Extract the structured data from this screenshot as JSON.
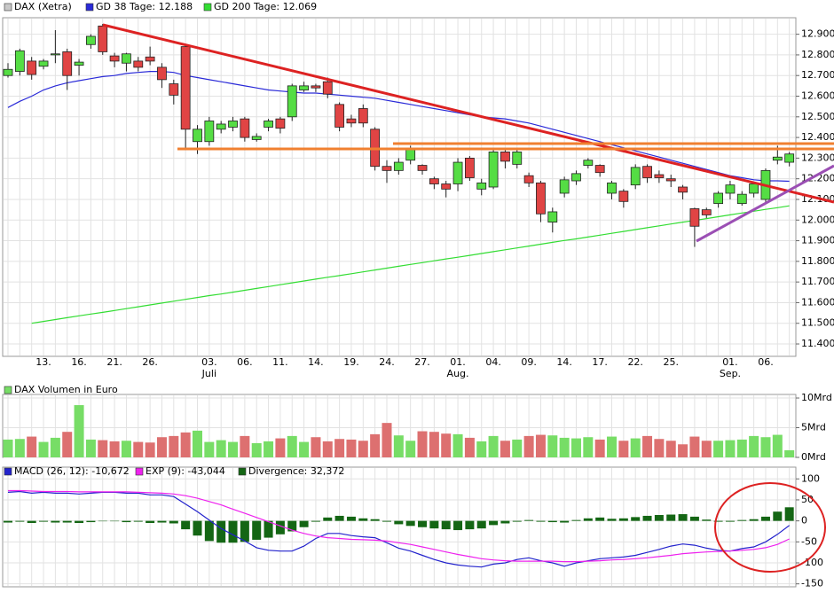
{
  "chart_data": [
    {
      "type": "candlestick",
      "name": "DAX (Xetra)",
      "legend_color": "#c8c8c8",
      "up_color": "#55dd44",
      "down_color": "#e04444",
      "categories": [
        null,
        null,
        null,
        "13.",
        null,
        null,
        "16.",
        null,
        null,
        "21.",
        null,
        null,
        "26.",
        null,
        null,
        null,
        null,
        "03.",
        null,
        null,
        "06.",
        null,
        null,
        "11.",
        null,
        null,
        "14.",
        null,
        null,
        "19.",
        null,
        null,
        "24.",
        null,
        null,
        "27.",
        null,
        null,
        "01.",
        null,
        null,
        "04.",
        null,
        null,
        "09.",
        null,
        null,
        "14.",
        null,
        null,
        "17.",
        null,
        null,
        "22.",
        null,
        null,
        "25.",
        null,
        null,
        null,
        null,
        "01.",
        null,
        null,
        "06.",
        null,
        null
      ],
      "month_labels": [
        null,
        null,
        null,
        null,
        null,
        null,
        null,
        null,
        null,
        null,
        null,
        null,
        null,
        null,
        null,
        null,
        null,
        "Juli",
        null,
        null,
        null,
        null,
        null,
        null,
        null,
        null,
        null,
        null,
        null,
        null,
        null,
        null,
        null,
        null,
        null,
        null,
        null,
        null,
        "Aug.",
        null,
        null,
        null,
        null,
        null,
        null,
        null,
        null,
        null,
        null,
        null,
        null,
        null,
        null,
        null,
        null,
        null,
        null,
        null,
        null,
        null,
        null,
        "Sep.",
        null,
        null,
        null,
        null,
        null
      ],
      "open": [
        12700,
        12720,
        12770,
        12745,
        12800,
        12815,
        12750,
        12850,
        12940,
        12795,
        12760,
        12770,
        12790,
        12740,
        12660,
        12840,
        12380,
        12380,
        12440,
        12450,
        12490,
        12390,
        12450,
        12490,
        12500,
        12630,
        12650,
        12670,
        12560,
        12490,
        12540,
        12440,
        12260,
        12240,
        12290,
        12265,
        12200,
        12175,
        12175,
        12300,
        12150,
        12160,
        12330,
        12270,
        12215,
        12180,
        11990,
        12130,
        12190,
        12265,
        12265,
        12130,
        12140,
        12170,
        12260,
        12220,
        12200,
        12160,
        12055,
        12050,
        12080,
        12130,
        12080,
        12130,
        12100,
        12290,
        12280
      ],
      "high": [
        12760,
        12830,
        12790,
        12780,
        12920,
        12830,
        12780,
        12900,
        12950,
        12810,
        12810,
        12790,
        12840,
        12760,
        12680,
        12850,
        12460,
        12500,
        12480,
        12500,
        12500,
        12420,
        12490,
        12500,
        12660,
        12670,
        12660,
        12690,
        12570,
        12510,
        12560,
        12450,
        12290,
        12300,
        12360,
        12270,
        12210,
        12190,
        12300,
        12310,
        12200,
        12340,
        12340,
        12350,
        12230,
        12190,
        12060,
        12210,
        12240,
        12300,
        12270,
        12190,
        12150,
        12270,
        12270,
        12240,
        12220,
        12170,
        12060,
        12060,
        12140,
        12190,
        12140,
        12180,
        12250,
        12360,
        12330
      ],
      "low": [
        12690,
        12700,
        12680,
        12730,
        12760,
        12630,
        12700,
        12830,
        12800,
        12740,
        12720,
        12720,
        12750,
        12640,
        12560,
        12340,
        12320,
        12360,
        12420,
        12430,
        12380,
        12380,
        12430,
        12420,
        12480,
        12620,
        12620,
        12590,
        12430,
        12450,
        12450,
        12240,
        12180,
        12220,
        12270,
        12220,
        12150,
        12110,
        12140,
        12190,
        12120,
        12150,
        12250,
        12250,
        12160,
        11990,
        11940,
        12110,
        12170,
        12250,
        12210,
        12100,
        12060,
        12150,
        12180,
        12180,
        12160,
        12100,
        11870,
        12010,
        12060,
        12100,
        12070,
        12110,
        12080,
        12270,
        12260
      ],
      "close": [
        12730,
        12820,
        12705,
        12770,
        12805,
        12700,
        12765,
        12890,
        12815,
        12770,
        12805,
        12740,
        12770,
        12680,
        12605,
        12440,
        12440,
        12480,
        12465,
        12480,
        12400,
        12405,
        12480,
        12445,
        12650,
        12650,
        12640,
        12610,
        12450,
        12470,
        12470,
        12260,
        12240,
        12280,
        12340,
        12240,
        12175,
        12150,
        12280,
        12205,
        12180,
        12330,
        12285,
        12330,
        12180,
        12030,
        12040,
        12195,
        12225,
        12290,
        12230,
        12180,
        12090,
        12255,
        12205,
        12205,
        12190,
        12135,
        11970,
        12025,
        12130,
        12170,
        12125,
        12175,
        12240,
        12305,
        12320
      ],
      "lines": [
        {
          "name": "GD 38 Tage: 12.188",
          "color": "#2a2ad8",
          "values": [
            12545,
            12575,
            12600,
            12630,
            12650,
            12665,
            12675,
            12685,
            12695,
            12700,
            12710,
            12715,
            12720,
            12720,
            12715,
            12700,
            12690,
            12680,
            12670,
            12660,
            12650,
            12640,
            12630,
            12625,
            12620,
            12615,
            12615,
            12610,
            12605,
            12600,
            12595,
            12590,
            12580,
            12570,
            12560,
            12550,
            12540,
            12530,
            12520,
            12510,
            12500,
            12495,
            12490,
            12480,
            12470,
            12455,
            12440,
            12425,
            12410,
            12395,
            12380,
            12365,
            12350,
            12335,
            12320,
            12305,
            12290,
            12275,
            12260,
            12245,
            12230,
            12215,
            12205,
            12195,
            12190,
            12190,
            12188
          ]
        },
        {
          "name": "GD 200 Tage: 12.069",
          "color": "#33dd33",
          "values": [
            null,
            null,
            11500,
            11509,
            11518,
            11527,
            11536,
            11545,
            11553,
            11562,
            11571,
            11580,
            11589,
            11598,
            11607,
            11616,
            11625,
            11634,
            11642,
            11651,
            11660,
            11669,
            11678,
            11687,
            11696,
            11705,
            11714,
            11723,
            11731,
            11740,
            11749,
            11758,
            11767,
            11776,
            11785,
            11794,
            11803,
            11812,
            11820,
            11829,
            11838,
            11847,
            11856,
            11865,
            11874,
            11883,
            11892,
            11901,
            11909,
            11918,
            11927,
            11936,
            11945,
            11954,
            11963,
            11972,
            11981,
            11990,
            11998,
            12007,
            12016,
            12025,
            12034,
            12043,
            12052,
            12060,
            12069
          ]
        }
      ],
      "ylim": [
        11340,
        12980
      ],
      "yticks": [
        {
          "value": 11400,
          "label": "11.400"
        },
        {
          "value": 11500,
          "label": "11.500"
        },
        {
          "value": 11600,
          "label": "11.600"
        },
        {
          "value": 11700,
          "label": "11.700"
        },
        {
          "value": 11800,
          "label": "11.800"
        },
        {
          "value": 11900,
          "label": "11.900"
        },
        {
          "value": 12000,
          "label": "12.000"
        },
        {
          "value": 12100,
          "label": "12.100"
        },
        {
          "value": 12200,
          "label": "12.200"
        },
        {
          "value": 12300,
          "label": "12.300"
        },
        {
          "value": 12400,
          "label": "12.400"
        },
        {
          "value": 12500,
          "label": "12.500"
        },
        {
          "value": 12600,
          "label": "12.600"
        },
        {
          "value": 12700,
          "label": "12.700"
        },
        {
          "value": 12800,
          "label": "12.800"
        },
        {
          "value": 12900,
          "label": "12.900"
        }
      ],
      "grid": true
    },
    {
      "type": "bar",
      "title": "DAX Volumen in Euro",
      "legend_color": "#77dd66",
      "up_color": "#77dd66",
      "down_color": "#dd7070",
      "values": [
        3.0,
        3.1,
        3.5,
        2.6,
        3.3,
        4.3,
        8.8,
        3.0,
        2.9,
        2.7,
        2.8,
        2.6,
        2.5,
        3.4,
        3.6,
        4.2,
        4.5,
        2.6,
        2.9,
        2.6,
        3.6,
        2.4,
        2.7,
        3.2,
        3.6,
        2.6,
        3.4,
        2.7,
        3.1,
        3.0,
        2.8,
        3.9,
        5.8,
        3.7,
        2.8,
        4.4,
        4.3,
        4.0,
        3.9,
        3.3,
        2.7,
        3.6,
        2.8,
        3.0,
        3.6,
        3.8,
        3.7,
        3.3,
        3.2,
        3.4,
        3.0,
        3.5,
        2.8,
        3.2,
        3.6,
        3.1,
        2.8,
        2.2,
        3.5,
        2.8,
        2.8,
        2.9,
        3.0,
        3.6,
        3.4,
        3.8,
        1.2
      ],
      "ylim": [
        0,
        10.6
      ],
      "yticks": [
        {
          "value": 0,
          "label": "0Mrd"
        },
        {
          "value": 5,
          "label": "5Mrd"
        },
        {
          "value": 10,
          "label": "10Mrd"
        }
      ],
      "grid": true
    },
    {
      "type": "macd",
      "series": [
        {
          "name": "MACD (26, 12): -10,672",
          "color": "#2222cc",
          "kind": "line",
          "values": [
            68,
            70,
            66,
            68,
            66,
            66,
            64,
            66,
            68,
            68,
            66,
            66,
            62,
            62,
            58,
            40,
            22,
            2,
            -18,
            -33,
            -48,
            -64,
            -70,
            -72,
            -72,
            -60,
            -42,
            -30,
            -30,
            -35,
            -38,
            -40,
            -52,
            -65,
            -72,
            -82,
            -92,
            -100,
            -105,
            -108,
            -110,
            -103,
            -100,
            -92,
            -88,
            -95,
            -100,
            -108,
            -100,
            -95,
            -90,
            -88,
            -86,
            -82,
            -75,
            -68,
            -60,
            -55,
            -58,
            -65,
            -70,
            -72,
            -66,
            -62,
            -50,
            -32,
            -10.672
          ]
        },
        {
          "name": "EXP (9): -43,044",
          "color": "#ee22ee",
          "kind": "line",
          "values": [
            72,
            72,
            71,
            70,
            70,
            70,
            69,
            69,
            69,
            69,
            69,
            68,
            67,
            66,
            64,
            60,
            54,
            46,
            38,
            28,
            18,
            8,
            -2,
            -12,
            -22,
            -30,
            -36,
            -40,
            -42,
            -44,
            -45,
            -46,
            -48,
            -52,
            -56,
            -62,
            -68,
            -74,
            -80,
            -85,
            -90,
            -93,
            -95,
            -96,
            -96,
            -96,
            -96,
            -97,
            -97,
            -96,
            -95,
            -93,
            -92,
            -90,
            -88,
            -85,
            -82,
            -78,
            -76,
            -74,
            -73,
            -72,
            -70,
            -68,
            -64,
            -56,
            -43.044
          ]
        },
        {
          "name": "Divergence: 32,372",
          "color": "#146614",
          "kind": "bar",
          "values": [
            -4,
            -2,
            -5,
            -2,
            -4,
            -4,
            -5,
            -3,
            -1,
            -1,
            -3,
            -2,
            -5,
            -4,
            -6,
            -20,
            -35,
            -48,
            -52,
            -52,
            -50,
            -45,
            -40,
            -32,
            -25,
            -15,
            -2,
            8,
            12,
            10,
            6,
            4,
            -2,
            -8,
            -12,
            -15,
            -18,
            -20,
            -22,
            -20,
            -18,
            -10,
            -6,
            -2,
            2,
            -2,
            -3,
            -4,
            2,
            6,
            8,
            5,
            6,
            9,
            12,
            14,
            15,
            16,
            10,
            3,
            -2,
            -2,
            2,
            4,
            10,
            22,
            32.372
          ]
        }
      ],
      "ylim": [
        -157,
        128
      ],
      "yticks": [
        100,
        50,
        0,
        -50,
        -100,
        -150
      ],
      "grid": true
    }
  ]
}
